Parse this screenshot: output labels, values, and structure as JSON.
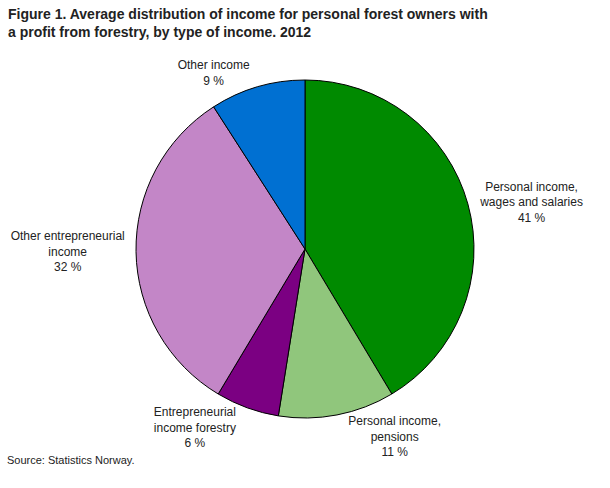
{
  "chart_data": {
    "type": "pie",
    "title": "Figure 1. Average distribution of income for personal forest owners with a profit from forestry,  by type of income. 2012",
    "categories": [
      "Personal income, wages and salaries",
      "Personal income, pensions",
      "Entrepreneurial income forestry",
      "Other entrepreneurial income",
      "Other income"
    ],
    "values": [
      41,
      11,
      6,
      32,
      9
    ],
    "value_labels": [
      "41 %",
      "11 %",
      "6 %",
      "32 %",
      "9 %"
    ],
    "colors": [
      "#008a00",
      "#90c67c",
      "#7b0082",
      "#c386c7",
      "#0070d2"
    ],
    "data_labels": true,
    "annotations": [
      "Source: Statistics Norway."
    ]
  }
}
